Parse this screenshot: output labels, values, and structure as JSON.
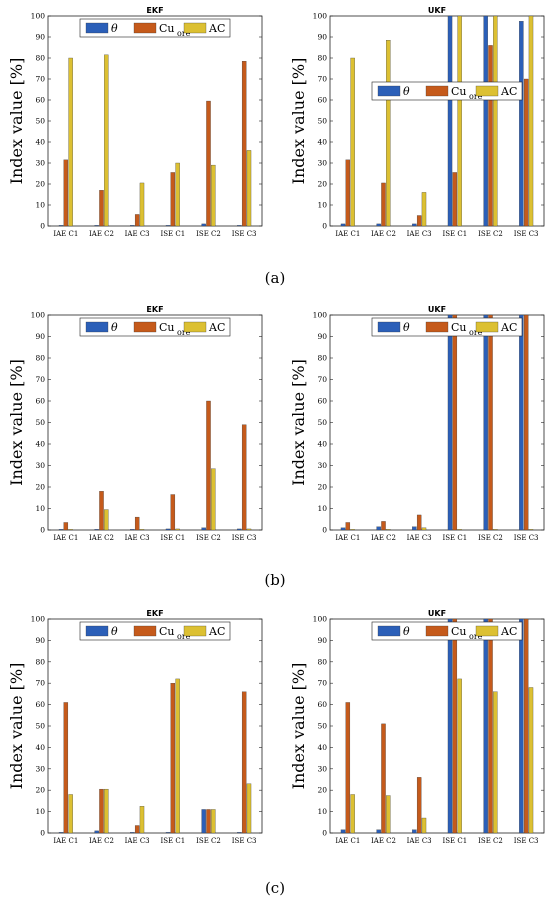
{
  "panel_labels": [
    "(a)",
    "(b)",
    "(c)"
  ],
  "colors": {
    "theta": "#2b5fb8",
    "cu": "#c55a1b",
    "ac": "#dcc032"
  },
  "chart_data": [
    {
      "type": "bar",
      "title": "EKF",
      "ylabel": "Index value [%]",
      "ylim": [
        0,
        100
      ],
      "yticks": [
        "0",
        "10",
        "20",
        "30",
        "40",
        "50",
        "60",
        "70",
        "80",
        "90",
        "100"
      ],
      "categories": [
        "IAE C1",
        "IAE C2",
        "IAE C3",
        "ISE C1",
        "ISE C2",
        "ISE C3"
      ],
      "legend": {
        "placement": "top",
        "entries": [
          "θ",
          "Cu",
          "AC"
        ],
        "subscript": "ore"
      },
      "series": [
        {
          "name": "θ",
          "values": [
            0.3,
            0.3,
            0.3,
            0.3,
            1.0,
            0.3
          ]
        },
        {
          "name": "Cu_ore",
          "values": [
            31.5,
            17,
            5.5,
            25.5,
            59.5,
            78.5
          ]
        },
        {
          "name": "AC",
          "values": [
            80,
            81.5,
            20.5,
            30,
            29,
            36
          ]
        }
      ]
    },
    {
      "type": "bar",
      "title": "UKF",
      "ylabel": "Index value [%]",
      "ylim": [
        0,
        100
      ],
      "yticks": [
        "0",
        "10",
        "20",
        "30",
        "40",
        "50",
        "60",
        "70",
        "80",
        "90",
        "100"
      ],
      "categories": [
        "IAE C1",
        "IAE C2",
        "IAE C3",
        "ISE C1",
        "ISE C2",
        "ISE C3"
      ],
      "legend": {
        "placement": "middle",
        "entries": [
          "θ",
          "Cu",
          "AC"
        ],
        "subscript": "ore"
      },
      "series": [
        {
          "name": "θ",
          "values": [
            1.0,
            1.0,
            1.0,
            100,
            100,
            97.5
          ]
        },
        {
          "name": "Cu_ore",
          "values": [
            31.5,
            20.5,
            5,
            25.5,
            86,
            70
          ]
        },
        {
          "name": "AC",
          "values": [
            80,
            88.5,
            16,
            100,
            100,
            100
          ]
        }
      ]
    },
    {
      "type": "bar",
      "title": "EKF",
      "ylabel": "Index value [%]",
      "ylim": [
        0,
        100
      ],
      "yticks": [
        "0",
        "10",
        "20",
        "30",
        "40",
        "50",
        "60",
        "70",
        "80",
        "90",
        "100"
      ],
      "categories": [
        "IAE C1",
        "IAE C2",
        "IAE C3",
        "ISE C1",
        "ISE C2",
        "ISE C3"
      ],
      "legend": {
        "placement": "top",
        "entries": [
          "θ",
          "Cu",
          "AC"
        ],
        "subscript": "ore"
      },
      "series": [
        {
          "name": "θ",
          "values": [
            0.3,
            0.3,
            0.3,
            0.5,
            1.0,
            0.5
          ]
        },
        {
          "name": "Cu_ore",
          "values": [
            3.5,
            18,
            6,
            16.5,
            60,
            49
          ]
        },
        {
          "name": "AC",
          "values": [
            0.3,
            9.5,
            0.3,
            0.5,
            28.5,
            0.5
          ]
        }
      ]
    },
    {
      "type": "bar",
      "title": "UKF",
      "ylabel": "Index value [%]",
      "ylim": [
        0,
        100
      ],
      "yticks": [
        "0",
        "10",
        "20",
        "30",
        "40",
        "50",
        "60",
        "70",
        "80",
        "90",
        "100"
      ],
      "categories": [
        "IAE C1",
        "IAE C2",
        "IAE C3",
        "ISE C1",
        "ISE C2",
        "ISE C3"
      ],
      "legend": {
        "placement": "top",
        "entries": [
          "θ",
          "Cu",
          "AC"
        ],
        "subscript": "ore"
      },
      "series": [
        {
          "name": "θ",
          "values": [
            1.0,
            1.5,
            1.5,
            100,
            100,
            100
          ]
        },
        {
          "name": "Cu_ore",
          "values": [
            3.5,
            4,
            7,
            100,
            100,
            100
          ]
        },
        {
          "name": "AC",
          "values": [
            0.3,
            0.3,
            1.0,
            0.3,
            0.3,
            0.3
          ]
        }
      ]
    },
    {
      "type": "bar",
      "title": "EKF",
      "ylabel": "Index value [%]",
      "ylim": [
        0,
        100
      ],
      "yticks": [
        "0",
        "10",
        "20",
        "30",
        "40",
        "50",
        "60",
        "70",
        "80",
        "90",
        "100"
      ],
      "categories": [
        "IAE C1",
        "IAE C2",
        "IAE C3",
        "ISE C1",
        "ISE C2",
        "ISE C3"
      ],
      "legend": {
        "placement": "top",
        "entries": [
          "θ",
          "Cu",
          "AC"
        ],
        "subscript": "ore"
      },
      "series": [
        {
          "name": "θ",
          "values": [
            0.3,
            1.0,
            0.3,
            0.3,
            11,
            0.3
          ]
        },
        {
          "name": "Cu_ore",
          "values": [
            61,
            20.5,
            3.5,
            70,
            11,
            66
          ]
        },
        {
          "name": "AC",
          "values": [
            18,
            20.5,
            12.5,
            72,
            11,
            23
          ]
        }
      ]
    },
    {
      "type": "bar",
      "title": "UKF",
      "ylabel": "Index value [%]",
      "ylim": [
        0,
        100
      ],
      "yticks": [
        "0",
        "10",
        "20",
        "30",
        "40",
        "50",
        "60",
        "70",
        "80",
        "90",
        "100"
      ],
      "categories": [
        "IAE C1",
        "IAE C2",
        "IAE C3",
        "ISE C1",
        "ISE C2",
        "ISE C3"
      ],
      "legend": {
        "placement": "top",
        "entries": [
          "θ",
          "Cu",
          "AC"
        ],
        "subscript": "ore"
      },
      "series": [
        {
          "name": "θ",
          "values": [
            1.5,
            1.5,
            1.5,
            100,
            100,
            100
          ]
        },
        {
          "name": "Cu_ore",
          "values": [
            61,
            51,
            26,
            100,
            100,
            100
          ]
        },
        {
          "name": "AC",
          "values": [
            18,
            17.5,
            7,
            72,
            66,
            68
          ]
        }
      ]
    }
  ]
}
